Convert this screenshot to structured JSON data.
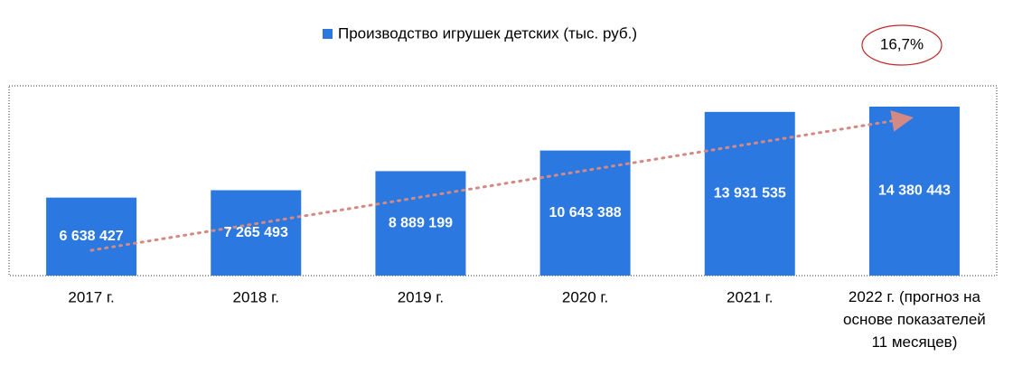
{
  "chart_data": {
    "type": "bar",
    "legend_label": "Производство игрушек детских (тыс. руб.)",
    "annotation": "16,7%",
    "categories": [
      "2017 г.",
      "2018 г.",
      "2019 г.",
      "2020 г.",
      "2021 г.",
      "2022 г. (прогноз на основе показателей 11 месяцев)"
    ],
    "values": [
      6638427,
      7265493,
      8889199,
      10643388,
      13931535,
      14380443
    ],
    "value_labels": [
      "6 638 427",
      "7 265 493",
      "8 889 199",
      "10 643 388",
      "13 931 535",
      "14 380 443"
    ],
    "color": "#2b78e0"
  }
}
